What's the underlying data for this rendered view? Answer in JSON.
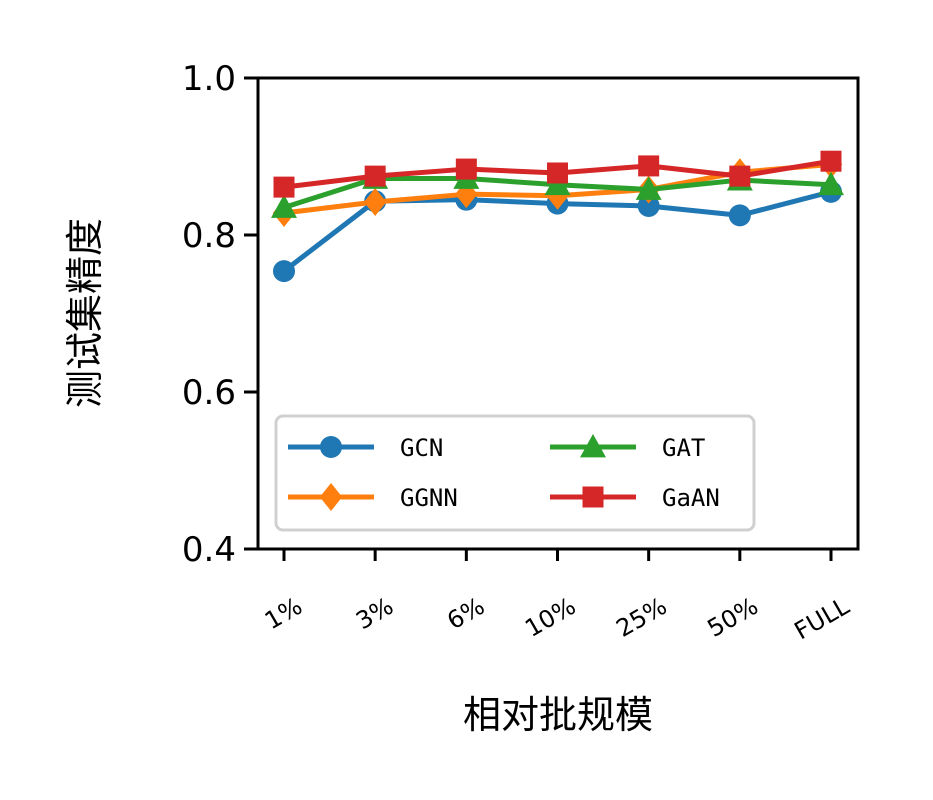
{
  "chart_data": {
    "type": "line",
    "xlabel": "相对批规模",
    "ylabel": "测试集精度",
    "categories": [
      "1%",
      "3%",
      "6%",
      "10%",
      "25%",
      "50%",
      "FULL"
    ],
    "yticks": [
      "0.4",
      "0.6",
      "0.8",
      "1.0"
    ],
    "ylim": [
      0.4,
      1.0
    ],
    "grid": false,
    "legend_position": "lower-left",
    "legend_columns": 2,
    "series": [
      {
        "name": "GCN",
        "color": "#1f77b4",
        "marker": "circle",
        "values": [
          0.754,
          0.843,
          0.845,
          0.84,
          0.837,
          0.825,
          0.855
        ]
      },
      {
        "name": "GGNN",
        "color": "#ff7f0e",
        "marker": "diamond",
        "values": [
          0.828,
          0.842,
          0.852,
          0.85,
          0.858,
          0.88,
          0.89
        ]
      },
      {
        "name": "GAT",
        "color": "#2ca02c",
        "marker": "triangle",
        "values": [
          0.835,
          0.872,
          0.872,
          0.864,
          0.858,
          0.87,
          0.864
        ]
      },
      {
        "name": "GaAN",
        "color": "#d62728",
        "marker": "square",
        "values": [
          0.861,
          0.875,
          0.884,
          0.879,
          0.888,
          0.875,
          0.894
        ]
      }
    ]
  }
}
